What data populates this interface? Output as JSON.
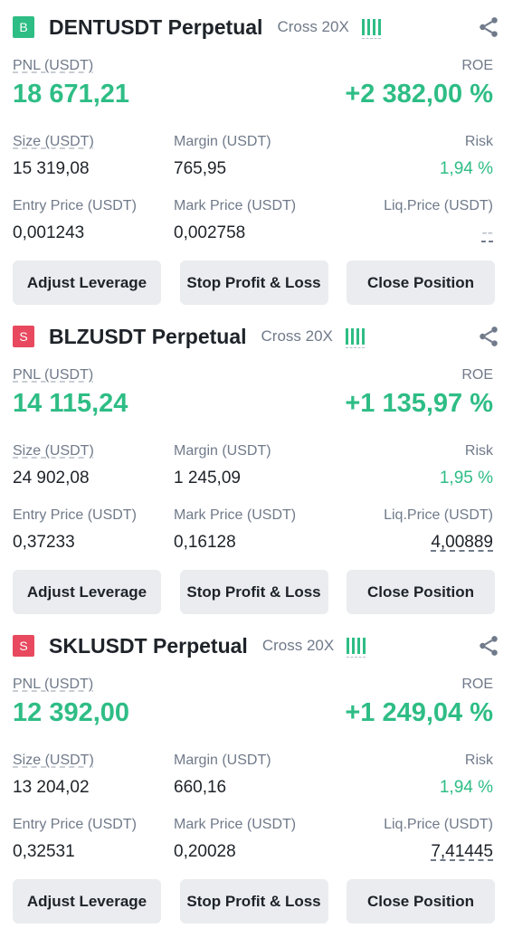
{
  "colors": {
    "positive": "#2ebd85",
    "long_badge": "#2ebd85",
    "short_badge": "#e8495e",
    "text_primary": "#1e2329",
    "text_secondary": "#707a8a",
    "button_bg": "#eaecef"
  },
  "positions": [
    {
      "side": "B",
      "side_color": "#2ebd85",
      "symbol": "DENTUSDT Perpetual",
      "margin_mode": "Cross 20X",
      "pnl_label": "PNL (USDT)",
      "pnl": "18 671,21",
      "roe_label": "ROE",
      "roe": "+2 382,00 %",
      "size_label": "Size (USDT)",
      "size": "15 319,08",
      "margin_label": "Margin (USDT)",
      "margin": "765,95",
      "risk_label": "Risk",
      "risk": "1,94 %",
      "entry_label": "Entry Price (USDT)",
      "entry": "0,001243",
      "mark_label": "Mark Price (USDT)",
      "mark": "0,002758",
      "liq_label": "Liq.Price (USDT)",
      "liq": "--",
      "buttons": [
        "Adjust Leverage",
        "Stop Profit & Loss",
        "Close Position"
      ]
    },
    {
      "side": "S",
      "side_color": "#e8495e",
      "symbol": "BLZUSDT Perpetual",
      "margin_mode": "Cross 20X",
      "pnl_label": "PNL (USDT)",
      "pnl": "14 115,24",
      "roe_label": "ROE",
      "roe": "+1 135,97 %",
      "size_label": "Size (USDT)",
      "size": "24 902,08",
      "margin_label": "Margin (USDT)",
      "margin": "1 245,09",
      "risk_label": "Risk",
      "risk": "1,95 %",
      "entry_label": "Entry Price (USDT)",
      "entry": "0,37233",
      "mark_label": "Mark Price (USDT)",
      "mark": "0,16128",
      "liq_label": "Liq.Price (USDT)",
      "liq": "4,00889",
      "buttons": [
        "Adjust Leverage",
        "Stop Profit & Loss",
        "Close Position"
      ]
    },
    {
      "side": "S",
      "side_color": "#e8495e",
      "symbol": "SKLUSDT Perpetual",
      "margin_mode": "Cross 20X",
      "pnl_label": "PNL (USDT)",
      "pnl": "12 392,00",
      "roe_label": "ROE",
      "roe": "+1 249,04 %",
      "size_label": "Size (USDT)",
      "size": "13 204,02",
      "margin_label": "Margin (USDT)",
      "margin": "660,16",
      "risk_label": "Risk",
      "risk": "1,94 %",
      "entry_label": "Entry Price (USDT)",
      "entry": "0,32531",
      "mark_label": "Mark Price (USDT)",
      "mark": "0,20028",
      "liq_label": "Liq.Price (USDT)",
      "liq": "7,41445",
      "buttons": [
        "Adjust Leverage",
        "Stop Profit & Loss",
        "Close Position"
      ]
    }
  ]
}
